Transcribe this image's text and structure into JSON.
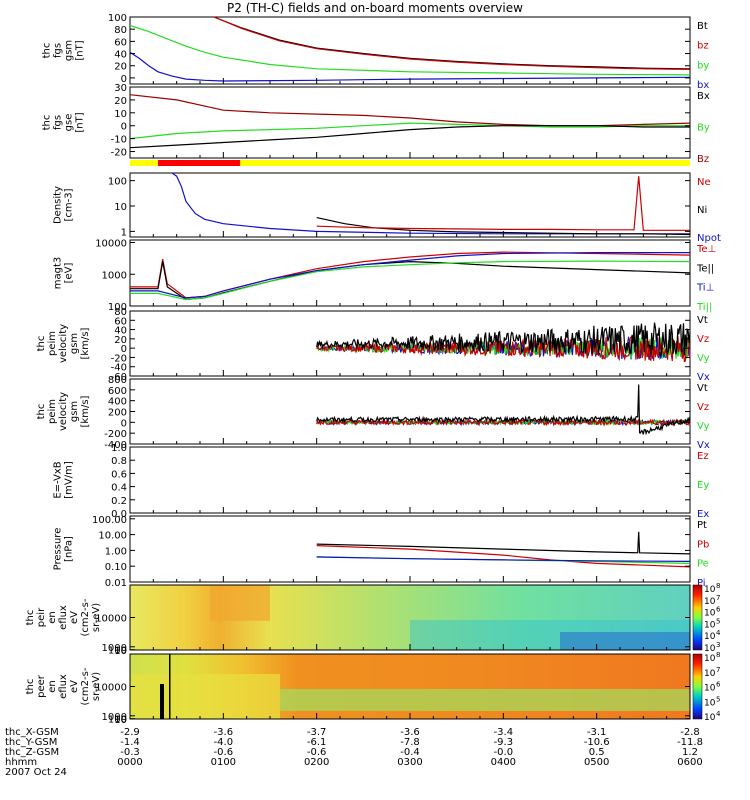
{
  "title": "P2 (TH-C) fields and on-board moments overview",
  "date": "2007 Oct 24",
  "colors": {
    "black": "#000000",
    "red": "#cc0000",
    "green": "#22dd22",
    "blue": "#1111cc",
    "darkred": "#990000",
    "yellow": "#ffff00",
    "brightred": "#ff0000"
  },
  "chart_data": [
    {
      "type": "line",
      "id": "p1",
      "ylabel": [
        "thc",
        "fgs",
        "gsm",
        "[nT]"
      ],
      "ylim": [
        -10,
        100
      ],
      "yticks": [
        "100",
        "80",
        "60",
        "40",
        "20",
        "0"
      ],
      "ytick_values": [
        100,
        80,
        60,
        40,
        20,
        0
      ],
      "legend": [
        {
          "label": "Bt",
          "color": "#000000"
        },
        {
          "label": "bz",
          "color": "#cc0000"
        },
        {
          "label": "by",
          "color": "#22dd22"
        },
        {
          "label": "bx",
          "color": "#1111cc"
        }
      ],
      "series": [
        {
          "name": "Bt",
          "color": "#000000",
          "x": [
            0.9,
            1.2,
            1.6,
            2.0,
            2.5,
            3.0,
            3.5,
            4.0,
            4.5,
            5.0,
            5.5,
            6.0
          ],
          "y": [
            100,
            82,
            62,
            49,
            40,
            32,
            27,
            23,
            20,
            18,
            16,
            15
          ]
        },
        {
          "name": "bz",
          "color": "#cc0000",
          "x": [
            0.9,
            1.2,
            1.6,
            2.0,
            2.5,
            3.0,
            3.5,
            4.0,
            4.5,
            5.0,
            5.5,
            6.0
          ],
          "y": [
            100,
            81,
            61,
            48,
            39,
            31,
            26,
            22,
            19,
            17,
            15,
            14
          ]
        },
        {
          "name": "by",
          "color": "#22dd22",
          "x": [
            0,
            0.2,
            0.4,
            0.6,
            0.8,
            1.0,
            1.5,
            2.0,
            3.0,
            4.0,
            5.0,
            6.0
          ],
          "y": [
            86,
            76,
            64,
            52,
            42,
            34,
            22,
            15,
            10,
            8,
            6,
            5
          ]
        },
        {
          "name": "bx",
          "color": "#1111cc",
          "x": [
            0,
            0.1,
            0.2,
            0.3,
            0.45,
            0.6,
            0.8,
            1.0,
            2.0,
            3.0,
            4.0,
            5.0,
            6.0
          ],
          "y": [
            42,
            32,
            20,
            10,
            3,
            -2,
            -4,
            -5,
            -4,
            -2,
            -1,
            0,
            1
          ]
        }
      ]
    },
    {
      "type": "line",
      "id": "p2",
      "ylabel": [
        "thc",
        "fgs",
        "gse",
        "[nT]"
      ],
      "ylim": [
        -25,
        30
      ],
      "yticks": [
        "30",
        "20",
        "10",
        "0",
        "-10",
        "-20"
      ],
      "ytick_values": [
        30,
        20,
        10,
        0,
        -10,
        -20
      ],
      "legend": [
        {
          "label": "Bx",
          "color": "#000000"
        },
        {
          "label": "By",
          "color": "#22dd22"
        },
        {
          "label": "Bz",
          "color": "#990000"
        }
      ],
      "series": [
        {
          "name": "Bz",
          "color": "#990000",
          "x": [
            0,
            0.5,
            1.0,
            1.5,
            2.0,
            2.5,
            3.0,
            3.5,
            4.0,
            4.5,
            5.0,
            5.5,
            6.0
          ],
          "y": [
            24,
            20,
            12,
            10,
            9,
            8,
            6,
            3,
            1,
            0,
            0,
            1,
            2
          ]
        },
        {
          "name": "By",
          "color": "#22dd22",
          "x": [
            0,
            0.5,
            1.0,
            1.5,
            2.0,
            2.5,
            3.0,
            3.5,
            4.0,
            4.5,
            5.0,
            5.5,
            6.0
          ],
          "y": [
            -10,
            -6,
            -4,
            -3,
            -2,
            0,
            2,
            1,
            0,
            -1,
            -1,
            0,
            0
          ]
        },
        {
          "name": "Bx",
          "color": "#000000",
          "x": [
            0,
            0.5,
            1.0,
            1.5,
            2.0,
            2.5,
            3.0,
            3.5,
            4.0,
            4.5,
            5.0,
            5.5,
            6.0
          ],
          "y": [
            -17,
            -15,
            -13,
            -11,
            -9,
            -6,
            -3,
            -1,
            0,
            0,
            0,
            -1,
            -1
          ]
        }
      ]
    },
    {
      "type": "line",
      "id": "p3",
      "scale": "log",
      "ylabel": [
        "Density",
        "[cm-3]"
      ],
      "ylim": [
        0.6,
        200
      ],
      "yticks": [
        "100",
        "10",
        "1"
      ],
      "ytick_values": [
        100,
        10,
        1
      ],
      "legend": [
        {
          "label": "Ne",
          "color": "#cc0000"
        },
        {
          "label": "Ni",
          "color": "#000000"
        },
        {
          "label": "Npot",
          "color": "#1111cc"
        }
      ],
      "series": [
        {
          "name": "Npot",
          "color": "#1111cc",
          "x": [
            0.45,
            0.5,
            0.55,
            0.6,
            0.7,
            0.8,
            1.0,
            1.5,
            2.0,
            3.0,
            4.0,
            5.0,
            6.0
          ],
          "y": [
            200,
            150,
            60,
            15,
            5,
            3,
            2,
            1.3,
            1.0,
            0.85,
            0.8,
            0.8,
            0.8
          ]
        },
        {
          "name": "Ni",
          "color": "#000000",
          "x": [
            2.0,
            2.3,
            2.6,
            3.0,
            3.5,
            4.0,
            4.5,
            5.0,
            5.5,
            6.0
          ],
          "y": [
            3.5,
            2.0,
            1.4,
            1.1,
            0.95,
            0.9,
            0.85,
            0.8,
            0.8,
            0.75
          ]
        },
        {
          "name": "Ne",
          "color": "#cc0000",
          "x": [
            2.0,
            2.5,
            3.0,
            3.5,
            4.0,
            4.5,
            5.0,
            5.4,
            5.45,
            5.5,
            6.0
          ],
          "y": [
            1.6,
            1.4,
            1.3,
            1.25,
            1.2,
            1.2,
            1.15,
            1.15,
            150,
            1.1,
            1.1
          ]
        }
      ]
    },
    {
      "type": "line",
      "id": "p4",
      "scale": "log",
      "ylabel": [
        "magt3",
        "[eV]"
      ],
      "ylim": [
        100,
        12000
      ],
      "yticks": [
        "10000",
        "1000",
        "100"
      ],
      "ytick_values": [
        10000,
        1000,
        100
      ],
      "legend": [
        {
          "label": "Te⊥",
          "color": "#cc0000"
        },
        {
          "label": "Te||",
          "color": "#000000"
        },
        {
          "label": "Ti⊥",
          "color": "#1111cc"
        },
        {
          "label": "Ti||",
          "color": "#22dd22"
        }
      ],
      "series": [
        {
          "name": "Te⊥",
          "color": "#cc0000",
          "x": [
            0,
            0.3,
            0.35,
            0.4,
            0.6,
            0.8,
            1.0,
            1.5,
            2.0,
            2.5,
            3.0,
            3.5,
            4.0,
            5.0,
            6.0
          ],
          "y": [
            400,
            400,
            3000,
            500,
            180,
            200,
            300,
            700,
            1500,
            2500,
            3500,
            4500,
            5000,
            4500,
            4000
          ]
        },
        {
          "name": "Te||",
          "color": "#000000",
          "x": [
            0,
            0.3,
            0.35,
            0.4,
            0.6,
            0.8,
            1.0,
            1.5,
            2.0,
            2.5,
            3.0,
            3.5,
            4.0,
            5.0,
            6.0
          ],
          "y": [
            350,
            350,
            2500,
            400,
            160,
            180,
            260,
            600,
            1300,
            2000,
            2500,
            2200,
            1800,
            1400,
            1100
          ]
        },
        {
          "name": "Ti⊥",
          "color": "#1111cc",
          "x": [
            0,
            0.3,
            0.6,
            0.8,
            1.0,
            1.5,
            2.0,
            2.5,
            3.0,
            3.5,
            4.0,
            5.0,
            6.0
          ],
          "y": [
            300,
            300,
            180,
            200,
            300,
            700,
            1300,
            2000,
            2800,
            3800,
            4500,
            4800,
            4800
          ]
        },
        {
          "name": "Ti||",
          "color": "#22dd22",
          "x": [
            0,
            0.3,
            0.6,
            0.8,
            1.0,
            1.5,
            2.0,
            2.5,
            3.0,
            3.5,
            4.0,
            5.0,
            6.0
          ],
          "y": [
            250,
            250,
            160,
            180,
            250,
            600,
            1200,
            1700,
            2000,
            2300,
            2500,
            2600,
            2500
          ]
        }
      ]
    },
    {
      "type": "line",
      "id": "p5",
      "ylabel": [
        "thc",
        "peim",
        "velocity",
        "gsm",
        "[km/s]"
      ],
      "ylim": [
        -60,
        80
      ],
      "yticks": [
        "80",
        "60",
        "40",
        "20",
        "0",
        "-20",
        "-40",
        "-60"
      ],
      "ytick_values": [
        80,
        60,
        40,
        20,
        0,
        -20,
        -40,
        -60
      ],
      "legend": [
        {
          "label": "Vt",
          "color": "#000000"
        },
        {
          "label": "Vz",
          "color": "#cc0000"
        },
        {
          "label": "Vy",
          "color": "#22dd22"
        },
        {
          "label": "Vx",
          "color": "#1111cc"
        }
      ],
      "series": [
        {
          "name": "Vx",
          "color": "#1111cc",
          "x": [
            2.0,
            6.0
          ],
          "y": [
            0,
            0
          ],
          "noise": [
            4,
            28
          ]
        },
        {
          "name": "Vy",
          "color": "#22dd22",
          "x": [
            2.0,
            6.0
          ],
          "y": [
            0,
            0
          ],
          "noise": [
            5,
            25
          ]
        },
        {
          "name": "Vz",
          "color": "#cc0000",
          "x": [
            2.0,
            6.0
          ],
          "y": [
            0,
            0
          ],
          "noise": [
            5,
            30
          ]
        },
        {
          "name": "Vt",
          "color": "#000000",
          "x": [
            2.0,
            6.0
          ],
          "y": [
            8,
            20
          ],
          "noise": [
            6,
            40
          ]
        }
      ]
    },
    {
      "type": "line",
      "id": "p6",
      "ylabel": [
        "thc",
        "peim",
        "velocity",
        "gsm",
        "[km/s]"
      ],
      "ylim": [
        -400,
        800
      ],
      "yticks": [
        "800",
        "600",
        "400",
        "200",
        "0",
        "-200",
        "-400"
      ],
      "ytick_values": [
        800,
        600,
        400,
        200,
        0,
        -200,
        -400
      ],
      "legend": [
        {
          "label": "Vt",
          "color": "#000000"
        },
        {
          "label": "Vz",
          "color": "#cc0000"
        },
        {
          "label": "Vy",
          "color": "#22dd22"
        },
        {
          "label": "Vx",
          "color": "#1111cc"
        }
      ],
      "series": [
        {
          "name": "Vx",
          "color": "#1111cc",
          "x": [
            2.0,
            6.0
          ],
          "y": [
            0,
            0
          ],
          "noise": [
            30,
            40
          ]
        },
        {
          "name": "Vy",
          "color": "#22dd22",
          "x": [
            2.0,
            6.0
          ],
          "y": [
            0,
            0
          ],
          "noise": [
            30,
            40
          ]
        },
        {
          "name": "Vz",
          "color": "#cc0000",
          "x": [
            2.0,
            6.0
          ],
          "y": [
            0,
            0
          ],
          "noise": [
            40,
            50
          ]
        },
        {
          "name": "Vt",
          "color": "#000000",
          "x": [
            2.0,
            5.44,
            5.45,
            5.46,
            6.0
          ],
          "y": [
            50,
            60,
            650,
            -200,
            60
          ],
          "noise": [
            40,
            50
          ]
        }
      ]
    },
    {
      "type": "line",
      "id": "p7",
      "ylabel": [
        "E=-VxB",
        "[mV/m]"
      ],
      "ylim": [
        0,
        1
      ],
      "yticks": [
        "1.0",
        "0.8",
        "0.6",
        "0.4",
        "0.2",
        "0.0"
      ],
      "ytick_values": [
        1.0,
        0.8,
        0.6,
        0.4,
        0.2,
        0.0
      ],
      "legend": [
        {
          "label": "Ez",
          "color": "#cc0000"
        },
        {
          "label": "Ey",
          "color": "#22dd22"
        },
        {
          "label": "Ex",
          "color": "#1111cc"
        }
      ],
      "series": []
    },
    {
      "type": "line",
      "id": "p8",
      "scale": "log",
      "ylabel": [
        "Pressure",
        "[nPa]"
      ],
      "ylim": [
        0.01,
        150
      ],
      "yticks": [
        "100.00",
        "10.00",
        "1.00",
        "0.10",
        "0.01"
      ],
      "ytick_values": [
        100,
        10,
        1,
        0.1,
        0.01
      ],
      "legend": [
        {
          "label": "Pt",
          "color": "#000000"
        },
        {
          "label": "Pb",
          "color": "#cc0000"
        },
        {
          "label": "Pe",
          "color": "#22dd22"
        },
        {
          "label": "Pi",
          "color": "#1111cc"
        }
      ],
      "series": [
        {
          "name": "Pt",
          "color": "#000000",
          "x": [
            2.0,
            3.0,
            4.0,
            5.0,
            5.44,
            5.45,
            5.46,
            6.0
          ],
          "y": [
            2.5,
            1.8,
            1.2,
            0.8,
            0.7,
            15,
            0.7,
            0.6
          ]
        },
        {
          "name": "Pb",
          "color": "#cc0000",
          "x": [
            2.0,
            3.0,
            4.0,
            4.5,
            5.0,
            6.0
          ],
          "y": [
            2.0,
            1.2,
            0.5,
            0.25,
            0.15,
            0.09
          ]
        },
        {
          "name": "Pe",
          "color": "#22dd22",
          "x": [
            2.0,
            3.0,
            4.0,
            5.0,
            6.0
          ],
          "y": [
            0.4,
            0.3,
            0.25,
            0.2,
            0.15
          ]
        },
        {
          "name": "Pi",
          "color": "#1111cc",
          "x": [
            2.0,
            3.0,
            4.0,
            5.0,
            6.0
          ],
          "y": [
            0.38,
            0.3,
            0.25,
            0.22,
            0.2
          ]
        }
      ]
    },
    {
      "type": "heatmap",
      "id": "p9",
      "ylabel": [
        "thc",
        "peir",
        "en",
        "eflux",
        "eV",
        "(cm2-s-",
        "sr-eV)"
      ],
      "yticks": [
        "10000",
        "1000",
        "100",
        "10"
      ],
      "ytick_values": [
        10000,
        1000,
        100,
        10
      ],
      "ylim": [
        7,
        20000
      ],
      "colorbar": {
        "ticks": [
          "10",
          "10",
          "10",
          "10",
          "10",
          "10"
        ],
        "exponents": [
          "8",
          "7",
          "6",
          "5",
          "4",
          "3"
        ]
      }
    },
    {
      "type": "heatmap",
      "id": "p10",
      "ylabel": [
        "thc",
        "peer",
        "en",
        "eflux",
        "eV",
        "(cm2-s-",
        "sr-eV)"
      ],
      "yticks": [
        "10000",
        "1000",
        "100",
        "10"
      ],
      "ytick_values": [
        10000,
        1000,
        100,
        10
      ],
      "ylim": [
        7,
        20000
      ],
      "colorbar": {
        "ticks": [
          "10",
          "10",
          "10",
          "10",
          "10"
        ],
        "exponents": [
          "8",
          "7",
          "6",
          "5",
          "4"
        ]
      }
    }
  ],
  "xaxis": {
    "rows": [
      {
        "label": "thc_X-GSM",
        "values": [
          "-2.9",
          "-3.6",
          "-3.7",
          "-3.6",
          "-3.4",
          "-3.1",
          "-2.8"
        ]
      },
      {
        "label": "thc_Y-GSM",
        "values": [
          "-1.4",
          "-4.0",
          "-6.1",
          "-7.8",
          "-9.3",
          "-10.6",
          "-11.8"
        ]
      },
      {
        "label": "thc_Z-GSM",
        "values": [
          "-0.3",
          "-0.6",
          "-0.6",
          "-0.4",
          "-0.0",
          "0.5",
          "1.2"
        ]
      },
      {
        "label": "hhmm",
        "values": [
          "0000",
          "0100",
          "0200",
          "0300",
          "0400",
          "0500",
          "0600"
        ]
      }
    ],
    "hours": [
      0,
      1,
      2,
      3,
      4,
      5,
      6
    ]
  }
}
